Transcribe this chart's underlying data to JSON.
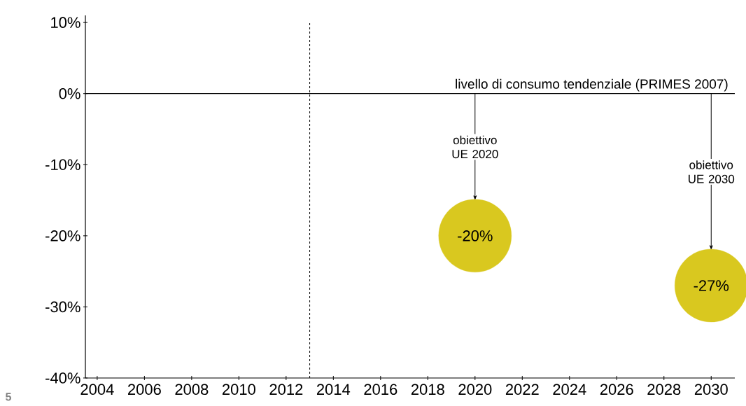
{
  "chart_data": {
    "type": "scatter",
    "xlim": [
      2003.5,
      2031
    ],
    "ylim": [
      -40,
      11
    ],
    "xticks": [
      2004,
      2006,
      2008,
      2010,
      2012,
      2014,
      2016,
      2018,
      2020,
      2022,
      2024,
      2026,
      2028,
      2030
    ],
    "yticks": [
      {
        "value": -40,
        "label": "-40%"
      },
      {
        "value": -30,
        "label": "-30%"
      },
      {
        "value": -20,
        "label": "-20%"
      },
      {
        "value": -10,
        "label": "-10%"
      },
      {
        "value": 0,
        "label": "0%"
      },
      {
        "value": 10,
        "label": "10%"
      }
    ],
    "series": [
      {
        "x": [
          2020,
          2030
        ],
        "values": [
          -20,
          -27
        ],
        "color": "#d9c81f",
        "value_labels": [
          "-20%",
          "-27%"
        ]
      }
    ],
    "marker": "circle",
    "grid": false,
    "ref_lines": [
      {
        "axis": "x",
        "value": 2013,
        "line_style": "dashed",
        "color": "#000000"
      },
      {
        "axis": "y",
        "value": 0,
        "label": "livello di consumo tendenziale (PRIMES 2007)",
        "line_style": "solid",
        "color": "#000000"
      }
    ],
    "annotations": [
      {
        "text": "obiettivo UE 2020",
        "x": 2020,
        "y": -15
      },
      {
        "text": "obiettivo UE 2030",
        "x": 2030,
        "y": -22
      },
      "5"
    ]
  }
}
